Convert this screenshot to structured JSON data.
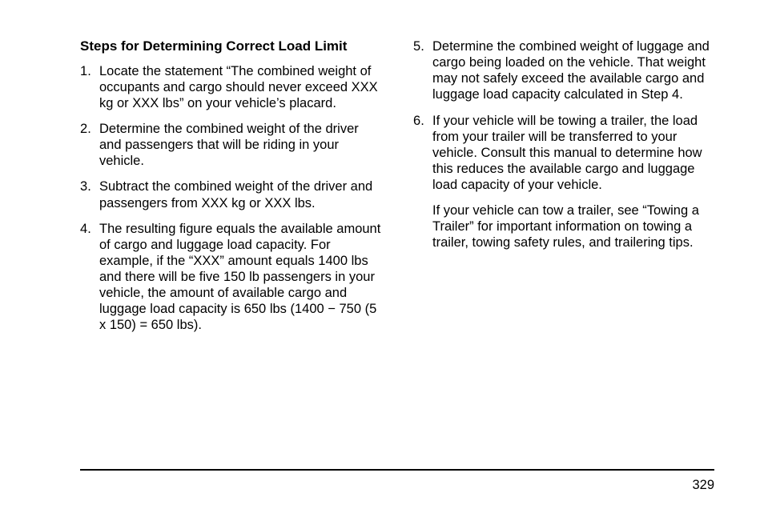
{
  "heading": "Steps for Determining Correct Load Limit",
  "left_start": 0,
  "right_start": 4,
  "left_items": [
    "Locate the statement “The combined weight of occupants and cargo should never exceed XXX kg or XXX lbs” on your vehicle’s placard.",
    "Determine the combined weight of the driver and passengers that will be riding in your vehicle.",
    "Subtract the combined weight of the driver and passengers from XXX kg or XXX lbs.",
    "The resulting figure equals the available amount of cargo and luggage load capacity. For example, if the “XXX” amount equals 1400 lbs and there will be five 150 lb passengers in your vehicle, the amount of available cargo and luggage load capacity is 650 lbs (1400 − 750 (5 x 150) = 650 lbs)."
  ],
  "right_items": [
    "Determine the combined weight of luggage and cargo being loaded on the vehicle. That weight may not safely exceed the available cargo and luggage load capacity calculated in Step 4.",
    "If your vehicle will be towing a trailer, the load from your trailer will be transferred to your vehicle. Consult this manual to determine how this reduces the available cargo and luggage load capacity of your vehicle."
  ],
  "right_trailing": "If your vehicle can tow a trailer, see “Towing a Trailer” for important information on towing a trailer, towing safety rules, and trailering tips.",
  "page_number": "329"
}
